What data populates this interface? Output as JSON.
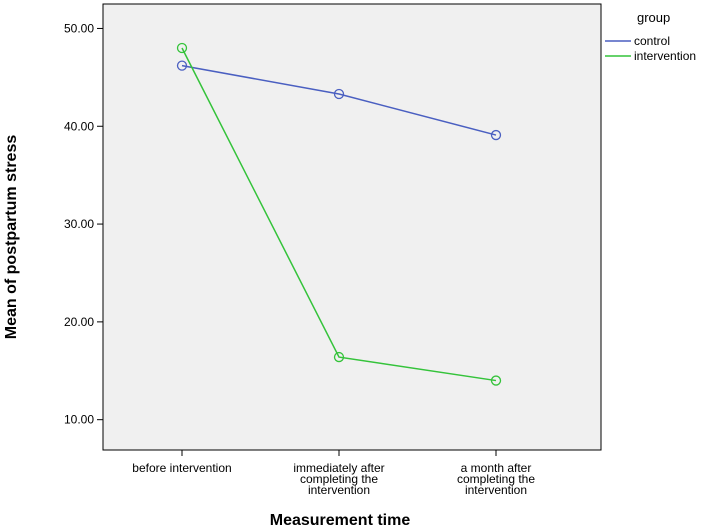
{
  "chart_data": {
    "type": "line",
    "categories": [
      [
        "before intervention"
      ],
      [
        "immediately  after",
        "completing the",
        "intervention"
      ],
      [
        "a  month  after",
        "completing the",
        "intervention"
      ]
    ],
    "series": [
      {
        "name": "control",
        "values": [
          46.2,
          43.3,
          39.1
        ],
        "color": "#4a5fc1"
      },
      {
        "name": "intervention",
        "values": [
          48.0,
          16.4,
          14.0
        ],
        "color": "#34c33a"
      }
    ],
    "xlabel": "Measurement time",
    "ylabel": "Mean of postpartum stress",
    "yticks": [
      10,
      20,
      30,
      40,
      50
    ],
    "ytick_labels": [
      "10.00",
      "20.00",
      "30.00",
      "40.00",
      "50.00"
    ],
    "ylim": [
      6.9,
      52.5
    ],
    "grid": false,
    "legend": {
      "title": "group",
      "position": "top-right",
      "outside": true
    },
    "markers": "open-circle",
    "plot_background": "#f0f0f0"
  }
}
